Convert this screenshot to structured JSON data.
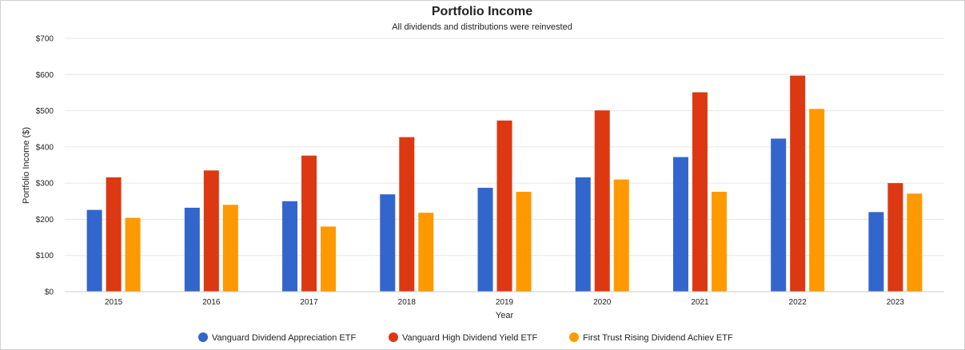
{
  "chart_data": {
    "type": "bar",
    "title": "Portfolio Income",
    "subtitle": "All dividends and distributions were reinvested",
    "xlabel": "Year",
    "ylabel": "Portfolio Income ($)",
    "ylim": [
      0,
      700
    ],
    "yticks": [
      0,
      100,
      200,
      300,
      400,
      500,
      600,
      700
    ],
    "ytick_labels": [
      "$0",
      "$100",
      "$200",
      "$300",
      "$400",
      "$500",
      "$600",
      "$700"
    ],
    "categories": [
      "2015",
      "2016",
      "2017",
      "2018",
      "2019",
      "2020",
      "2021",
      "2022",
      "2023"
    ],
    "grid": true,
    "legend_position": "bottom",
    "series": [
      {
        "name": "Vanguard Dividend Appreciation ETF",
        "color": "#3366cc",
        "values": [
          226,
          232,
          250,
          269,
          287,
          316,
          372,
          423,
          220
        ]
      },
      {
        "name": "Vanguard High Dividend Yield ETF",
        "color": "#dc3912",
        "values": [
          316,
          335,
          376,
          427,
          473,
          501,
          551,
          597,
          300
        ]
      },
      {
        "name": "First Trust Rising Dividend Achiev ETF",
        "color": "#ff9900",
        "values": [
          204,
          240,
          180,
          218,
          276,
          310,
          276,
          505,
          271
        ]
      }
    ]
  }
}
